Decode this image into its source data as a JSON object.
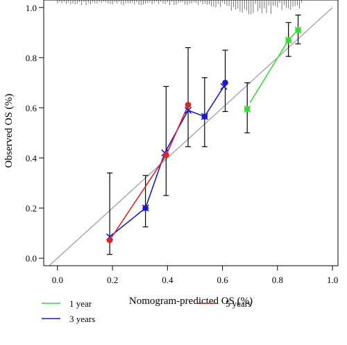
{
  "chart_data": {
    "type": "line",
    "subtype": "calibration-plot",
    "title": "",
    "xlabel": "Nomogram-predicted OS (%)",
    "ylabel": "Observed OS (%)",
    "xlim": [
      -0.05,
      1.02
    ],
    "ylim": [
      -0.03,
      1.03
    ],
    "xticks": [
      "0.0",
      "0.2",
      "0.4",
      "0.6",
      "0.8",
      "1.0"
    ],
    "xtick_values": [
      0,
      0.2,
      0.4,
      0.6,
      0.8,
      1.0
    ],
    "yticks": [
      "0.0",
      "0.2",
      "0.4",
      "0.6",
      "0.8",
      "1.0"
    ],
    "ytick_values": [
      0,
      0.2,
      0.4,
      0.6,
      0.8,
      1.0
    ],
    "grid": false,
    "reference_line": {
      "from": [
        -0.05,
        -0.05
      ],
      "to": [
        1.0,
        1.0
      ],
      "color": "#999999"
    },
    "legend_placement": "bottom",
    "series": [
      {
        "name": "1 year",
        "color": "#33dd33",
        "line_x": [
          0.7,
          0.84,
          0.875
        ],
        "line_y": [
          0.62,
          0.87,
          0.91
        ],
        "points_x": [
          0.69,
          0.84,
          0.875
        ],
        "points_y": [
          0.595,
          0.87,
          0.91
        ],
        "x_marker_x": [
          0.69,
          0.84,
          0.875
        ],
        "x_marker_y": [
          0.595,
          0.87,
          0.91
        ]
      },
      {
        "name": "3 years",
        "color": "#1a1acc",
        "line_x": [
          0.19,
          0.32,
          0.39,
          0.475,
          0.535,
          0.605
        ],
        "line_y": [
          0.085,
          0.2,
          0.42,
          0.59,
          0.565,
          0.685
        ],
        "points_x": [
          0.32,
          0.535,
          0.61
        ],
        "points_y": [
          0.2,
          0.565,
          0.7
        ],
        "x_marker_x": [
          0.19,
          0.32,
          0.39,
          0.475,
          0.535,
          0.605
        ],
        "x_marker_y": [
          0.085,
          0.2,
          0.42,
          0.59,
          0.565,
          0.685
        ]
      },
      {
        "name": "5 years",
        "color": "#dd2222",
        "line_x": [
          0.19,
          0.395,
          0.475
        ],
        "line_y": [
          0.072,
          0.41,
          0.61
        ],
        "points_x": [
          0.19,
          0.395,
          0.475
        ],
        "points_y": [
          0.072,
          0.412,
          0.612
        ],
        "x_marker_x": [],
        "x_marker_y": []
      }
    ],
    "error_bars": [
      {
        "x": 0.19,
        "low": 0.015,
        "high": 0.34
      },
      {
        "x": 0.32,
        "low": 0.125,
        "high": 0.33
      },
      {
        "x": 0.395,
        "low": 0.25,
        "high": 0.685
      },
      {
        "x": 0.475,
        "low": 0.445,
        "high": 0.84
      },
      {
        "x": 0.535,
        "low": 0.445,
        "high": 0.72
      },
      {
        "x": 0.61,
        "low": 0.585,
        "high": 0.83
      },
      {
        "x": 0.69,
        "low": 0.5,
        "high": 0.7
      },
      {
        "x": 0.84,
        "low": 0.805,
        "high": 0.94
      },
      {
        "x": 0.875,
        "low": 0.855,
        "high": 0.97
      }
    ],
    "rug": {
      "from": 0.0,
      "to": 0.89,
      "step": 0.008,
      "color": "#555555"
    },
    "legend": [
      {
        "label": "1 year",
        "color": "#33dd33",
        "row": 0,
        "col": 0
      },
      {
        "label": "3 years",
        "color": "#1a1acc",
        "row": 1,
        "col": 0
      },
      {
        "label": "5 years",
        "color": "#dd2222",
        "row": 0,
        "col": 1
      }
    ]
  }
}
